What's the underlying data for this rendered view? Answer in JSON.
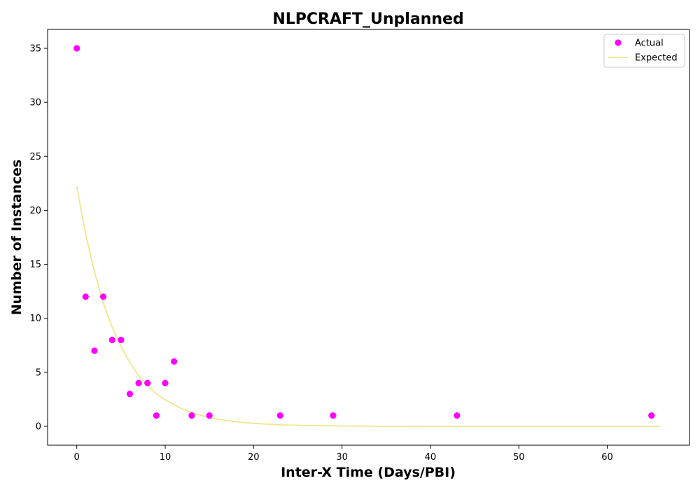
{
  "chart_data": {
    "type": "scatter",
    "title": "NLPCRAFT_Unplanned",
    "xlabel": "Inter-X Time (Days/PBI)",
    "ylabel": "Number of Instances",
    "xlim": [
      -3.3,
      69.3
    ],
    "ylim": [
      -1.75,
      36.75
    ],
    "xticks": [
      0,
      10,
      20,
      30,
      40,
      50,
      60
    ],
    "yticks": [
      0,
      5,
      10,
      15,
      20,
      25,
      30,
      35
    ],
    "grid": false,
    "legend_position": "top-right",
    "series": [
      {
        "name": "Actual",
        "kind": "scatter",
        "color": "#ff00ff",
        "x": [
          0,
          1,
          2,
          3,
          4,
          5,
          6,
          7,
          8,
          9,
          10,
          11,
          13,
          15,
          23,
          29,
          43,
          65
        ],
        "y": [
          35,
          12,
          7,
          12,
          8,
          8,
          3,
          4,
          4,
          1,
          4,
          6,
          1,
          1,
          1,
          1,
          1,
          1
        ]
      },
      {
        "name": "Expected",
        "kind": "line",
        "color": "#f0e68c",
        "x": [
          0,
          1,
          2,
          3,
          4,
          5,
          6,
          7,
          8,
          9,
          10,
          12,
          14,
          16,
          18,
          20,
          23,
          26,
          30,
          35,
          40,
          45,
          50,
          55,
          60,
          66
        ],
        "y": [
          22.2,
          17.8,
          14.3,
          11.4,
          9.2,
          7.4,
          5.9,
          4.7,
          3.8,
          3.0,
          2.45,
          1.58,
          1.01,
          0.65,
          0.42,
          0.27,
          0.14,
          0.07,
          0.03,
          0.01,
          0.0,
          0.0,
          0.0,
          0.0,
          0.0,
          0.0
        ]
      }
    ]
  }
}
